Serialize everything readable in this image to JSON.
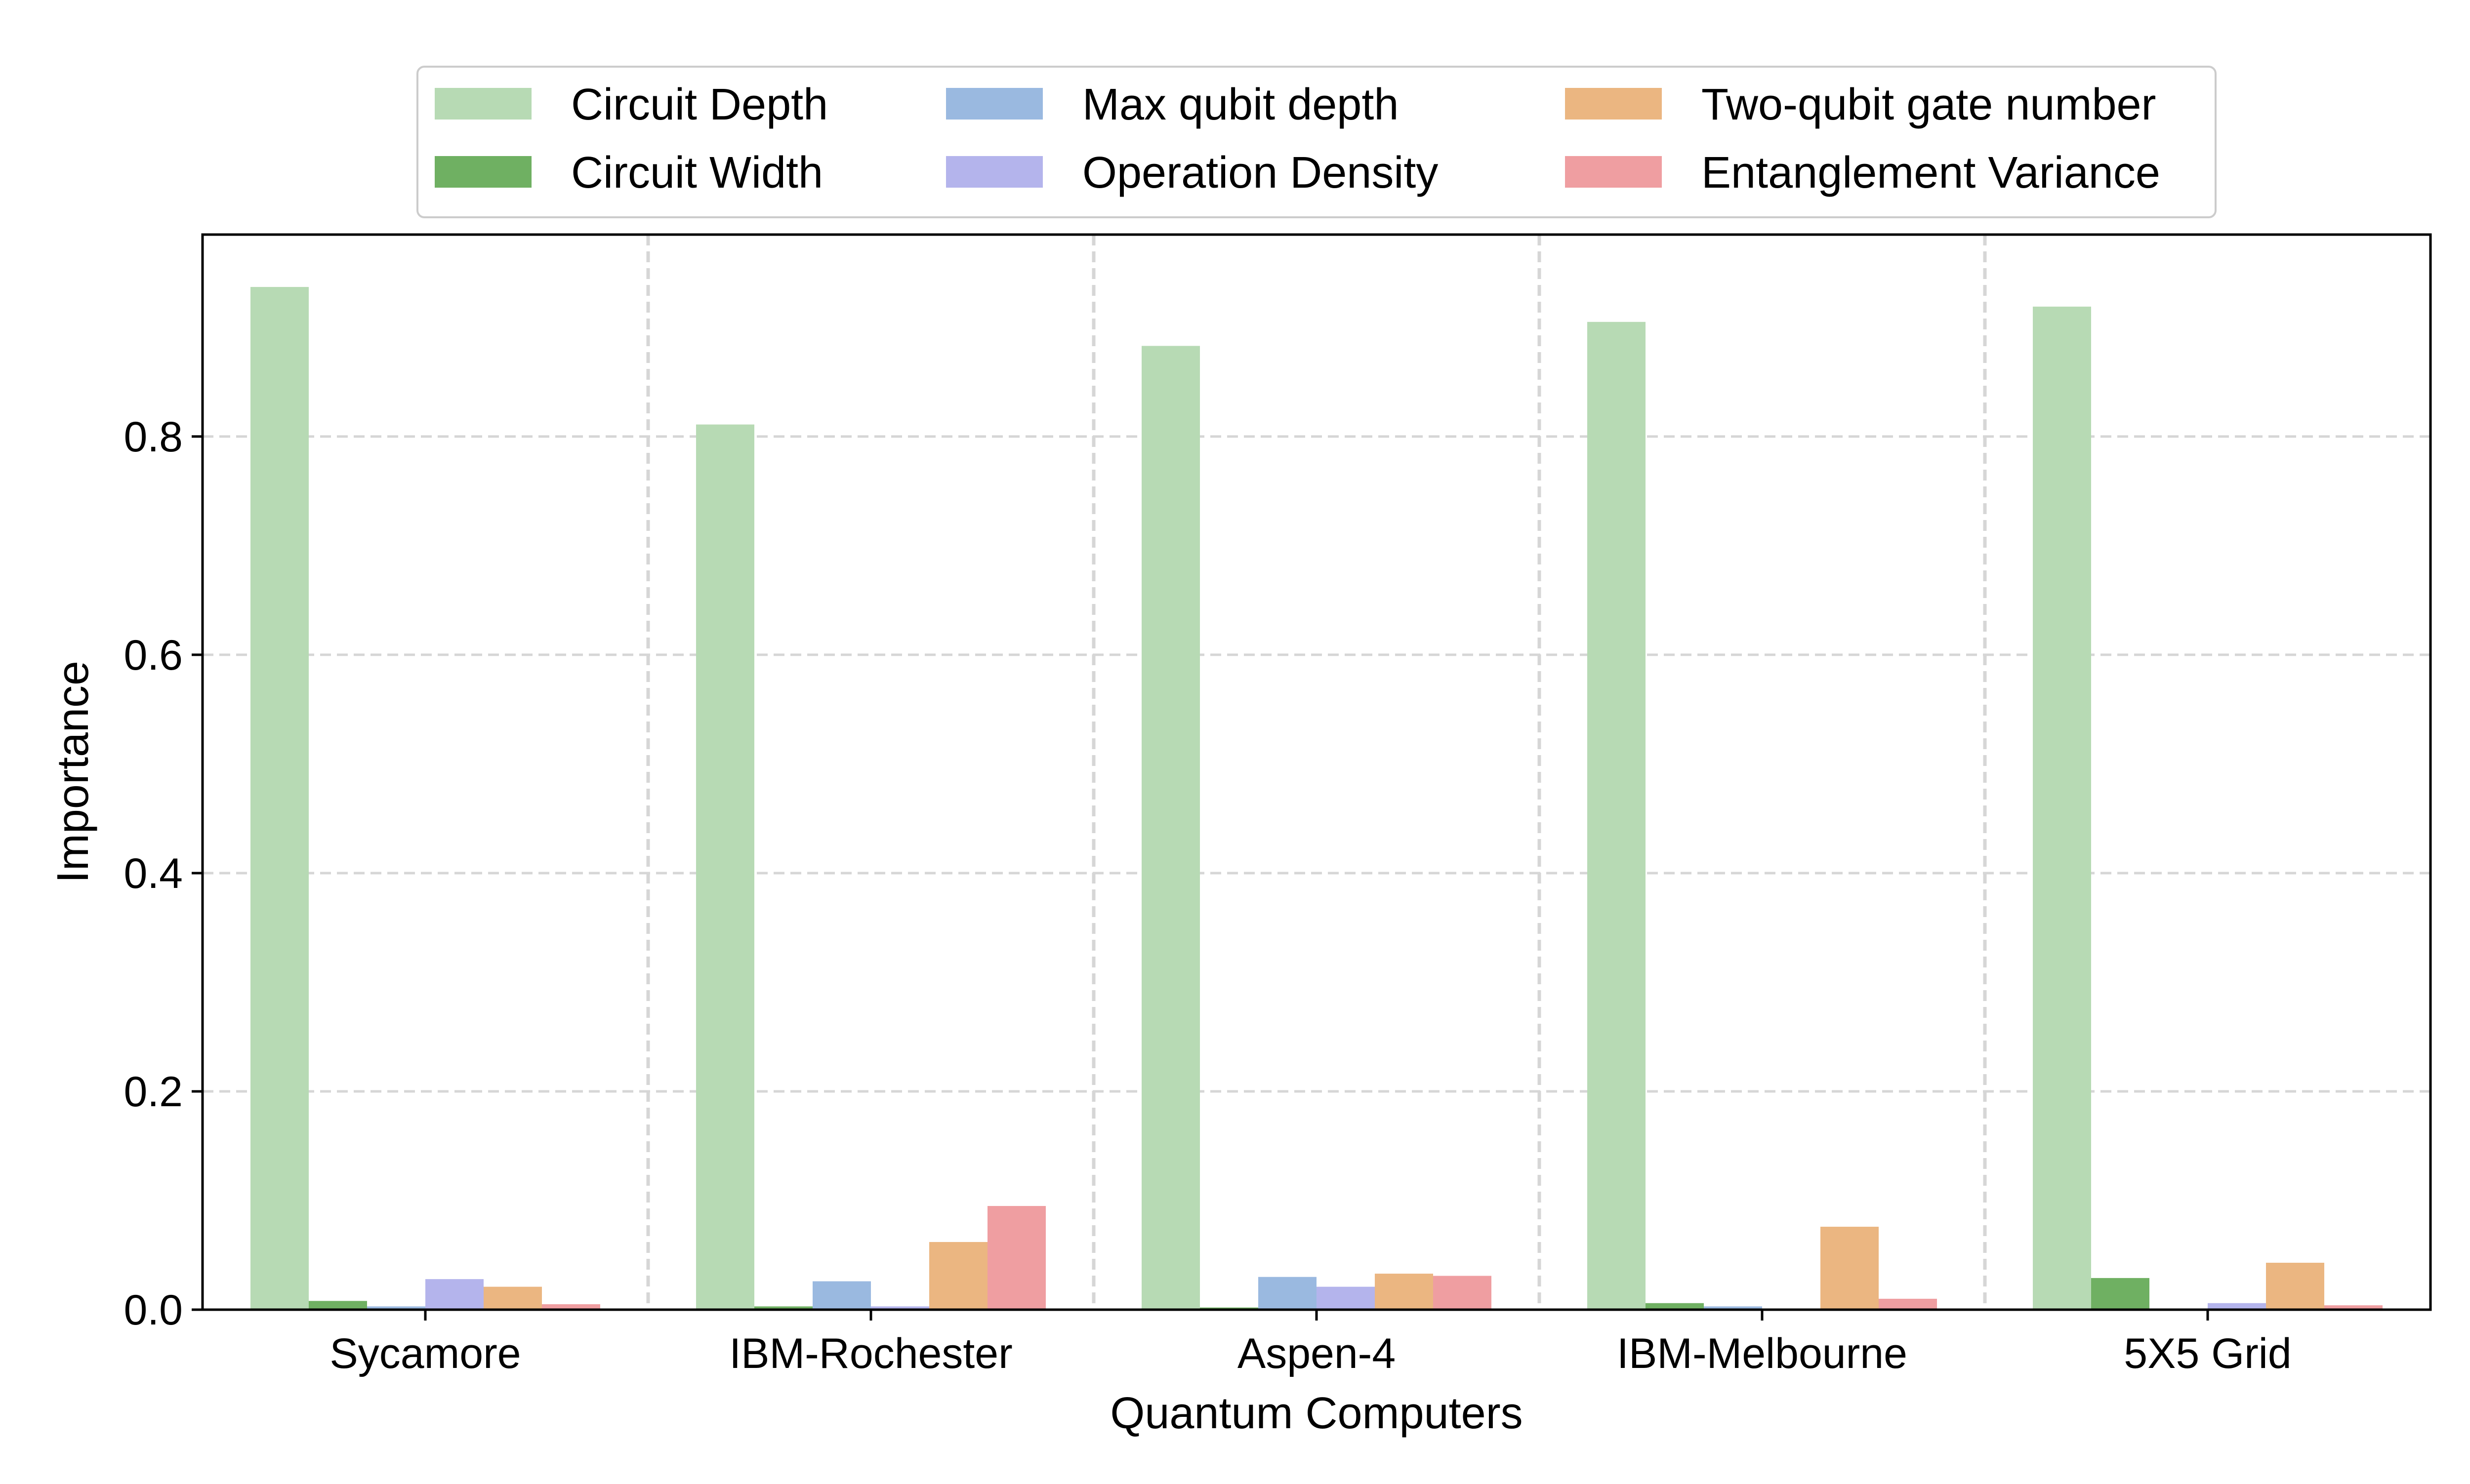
{
  "chart_data": {
    "type": "bar",
    "title": "",
    "xlabel": "Quantum Computers",
    "ylabel": "Importance",
    "ylim": [
      0,
      0.985
    ],
    "yticks": [
      0.0,
      0.2,
      0.4,
      0.6,
      0.8
    ],
    "ytick_labels": [
      "0.0",
      "0.2",
      "0.4",
      "0.6",
      "0.8"
    ],
    "grid": true,
    "legend_position": "top-center",
    "categories": [
      "Sycamore",
      "IBM-Rochester",
      "Aspen-4",
      "IBM-Melbourne",
      "5X5 Grid"
    ],
    "series": [
      {
        "name": "Circuit Depth",
        "color": "#b7dab4",
        "values": [
          0.937,
          0.811,
          0.883,
          0.905,
          0.919
        ]
      },
      {
        "name": "Circuit Width",
        "color": "#6fb062",
        "values": [
          0.008,
          0.003,
          0.002,
          0.006,
          0.029
        ]
      },
      {
        "name": "Max qubit depth",
        "color": "#9ab9e0",
        "values": [
          0.003,
          0.026,
          0.03,
          0.003,
          0.0
        ]
      },
      {
        "name": "Operation Density",
        "color": "#b4b4ec",
        "values": [
          0.028,
          0.003,
          0.021,
          0.0,
          0.006
        ]
      },
      {
        "name": "Two-qubit gate number",
        "color": "#ebb681",
        "values": [
          0.021,
          0.062,
          0.033,
          0.076,
          0.043
        ]
      },
      {
        "name": "Entanglement Variance",
        "color": "#ef9ea1",
        "values": [
          0.005,
          0.095,
          0.031,
          0.01,
          0.004
        ]
      }
    ]
  }
}
